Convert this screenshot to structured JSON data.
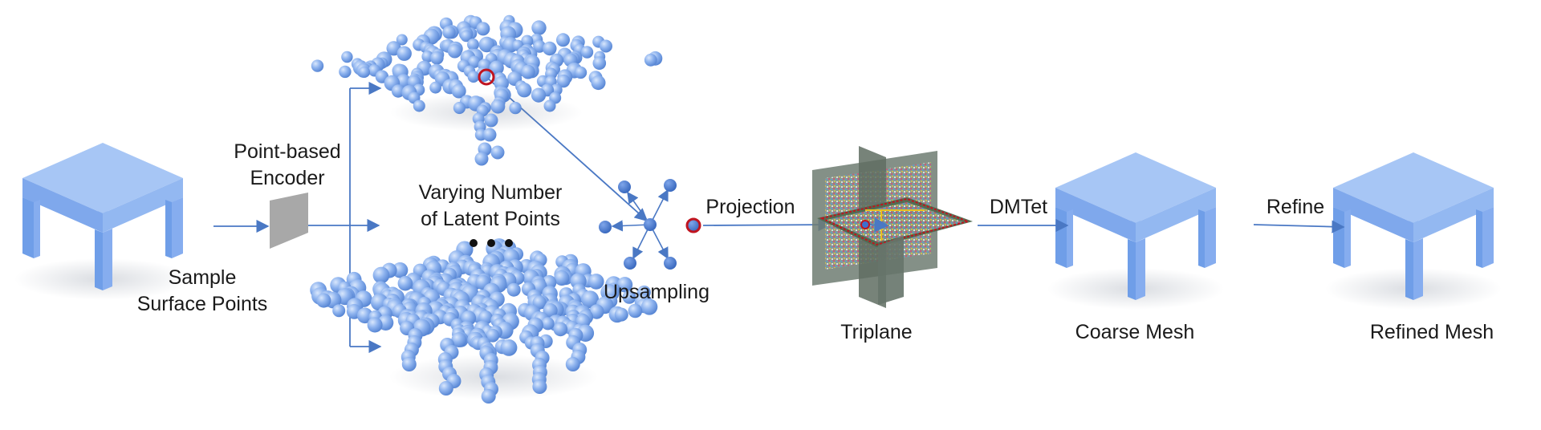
{
  "labels": {
    "sample": [
      "Sample",
      "Surface Points"
    ],
    "encoder": [
      "Point-based",
      "Encoder"
    ],
    "latent": [
      "Varying Number",
      "of Latent Points"
    ],
    "upsampling": "Upsampling",
    "projection": "Projection",
    "triplane": "Triplane",
    "dmtet": "DMTet",
    "coarse": "Coarse Mesh",
    "refine": "Refine",
    "refined": "Refined Mesh"
  },
  "colors": {
    "arrow": "#4a78c4",
    "mesh_top": "#a7c6f5",
    "mesh_left": "#6f9ee8",
    "mesh_right": "#87b0ee",
    "sphere": "#7aa5ea",
    "highlight": "#c0141f",
    "encoder": "#a8a8a8",
    "plane": "#6f7d72"
  }
}
